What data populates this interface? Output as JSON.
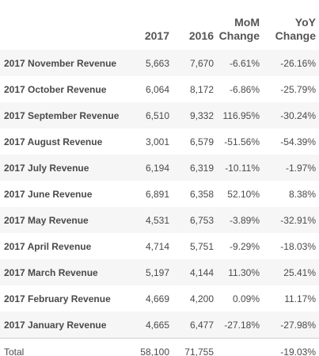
{
  "header": {
    "label": "",
    "col_2017": "2017",
    "col_2016": "2016",
    "mom_line1": "MoM",
    "mom_line2": "Change",
    "yoy_line1": "YoY",
    "yoy_line2": "Change"
  },
  "rows": [
    {
      "label": "2017 November Revenue",
      "v2017": "5,663",
      "v2016": "7,670",
      "mom": "-6.61%",
      "yoy": "-26.16%"
    },
    {
      "label": "2017 October Revenue",
      "v2017": "6,064",
      "v2016": "8,172",
      "mom": "-6.86%",
      "yoy": "-25.79%"
    },
    {
      "label": "2017 September Revenue",
      "v2017": "6,510",
      "v2016": "9,332",
      "mom": "116.95%",
      "yoy": "-30.24%"
    },
    {
      "label": "2017 August Revenue",
      "v2017": "3,001",
      "v2016": "6,579",
      "mom": "-51.56%",
      "yoy": "-54.39%"
    },
    {
      "label": "2017 July Revenue",
      "v2017": "6,194",
      "v2016": "6,319",
      "mom": "-10.11%",
      "yoy": "-1.97%"
    },
    {
      "label": "2017 June Revenue",
      "v2017": "6,891",
      "v2016": "6,358",
      "mom": "52.10%",
      "yoy": "8.38%"
    },
    {
      "label": "2017 May Revenue",
      "v2017": "4,531",
      "v2016": "6,753",
      "mom": "-3.89%",
      "yoy": "-32.91%"
    },
    {
      "label": "2017 April Revenue",
      "v2017": "4,714",
      "v2016": "5,751",
      "mom": "-9.29%",
      "yoy": "-18.03%"
    },
    {
      "label": "2017 March Revenue",
      "v2017": "5,197",
      "v2016": "4,144",
      "mom": "11.30%",
      "yoy": "25.41%"
    },
    {
      "label": "2017 February Revenue",
      "v2017": "4,669",
      "v2016": "4,200",
      "mom": "0.09%",
      "yoy": "11.17%"
    },
    {
      "label": "2017 January Revenue",
      "v2017": "4,665",
      "v2016": "6,477",
      "mom": "-27.18%",
      "yoy": "-27.98%"
    }
  ],
  "total": {
    "label": "Total",
    "v2017": "58,100",
    "v2016": "71,755",
    "mom": "",
    "yoy": "-19.03%"
  }
}
